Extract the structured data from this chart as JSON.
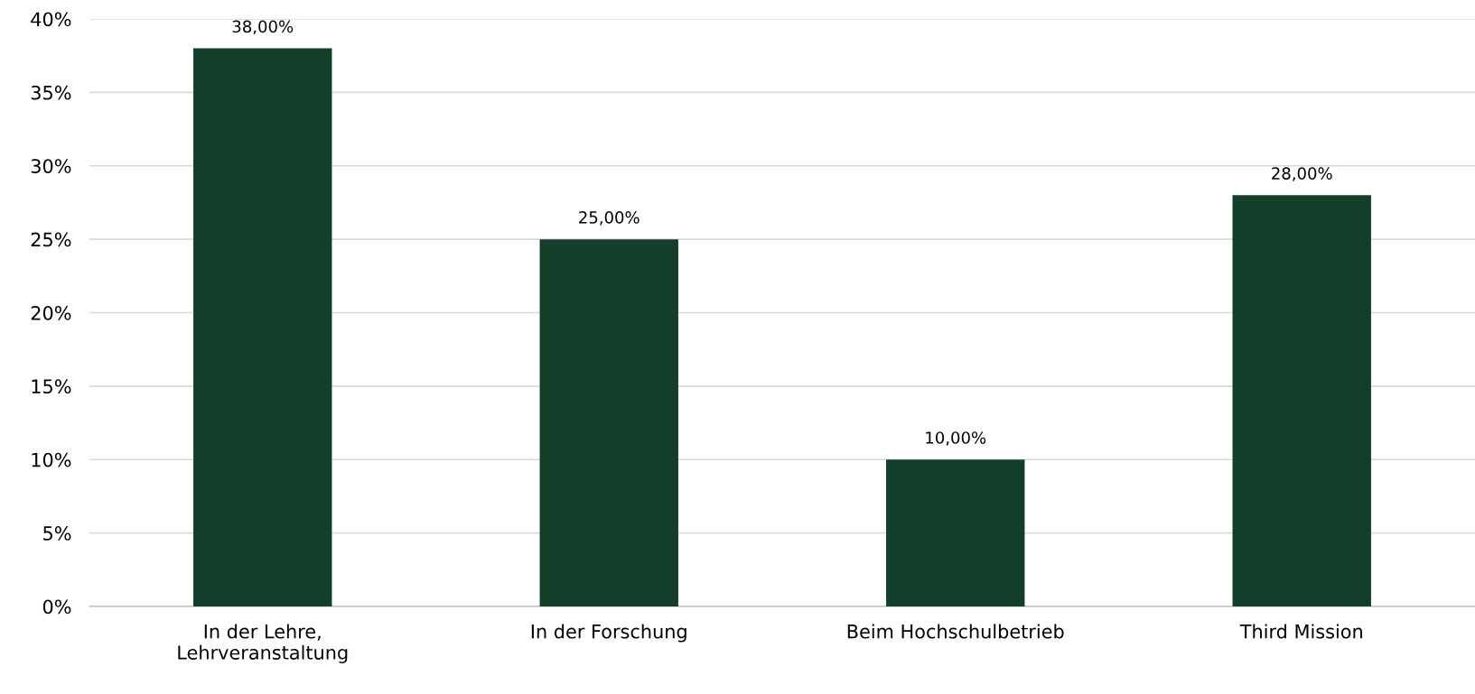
{
  "chart_data": {
    "type": "bar",
    "categories": [
      "In der Lehre,\nLehrveranstaltung",
      "In der Forschung",
      "Beim Hochschulbetrieb",
      "Third Mission"
    ],
    "values": [
      38,
      25,
      10,
      28
    ],
    "value_labels": [
      "38,00%",
      "25,00%",
      "10,00%",
      "28,00%"
    ],
    "color": "#133f2a",
    "ylim": [
      0,
      40
    ],
    "yticks": [
      {
        "value": 0,
        "label": "0%"
      },
      {
        "value": 5,
        "label": "5%"
      },
      {
        "value": 10,
        "label": "10%"
      },
      {
        "value": 15,
        "label": "15%"
      },
      {
        "value": 20,
        "label": "20%"
      },
      {
        "value": 25,
        "label": "25%"
      },
      {
        "value": 30,
        "label": "30%"
      },
      {
        "value": 35,
        "label": "35%"
      },
      {
        "value": 40,
        "label": "40%"
      }
    ],
    "grid": "y",
    "legend": false
  }
}
